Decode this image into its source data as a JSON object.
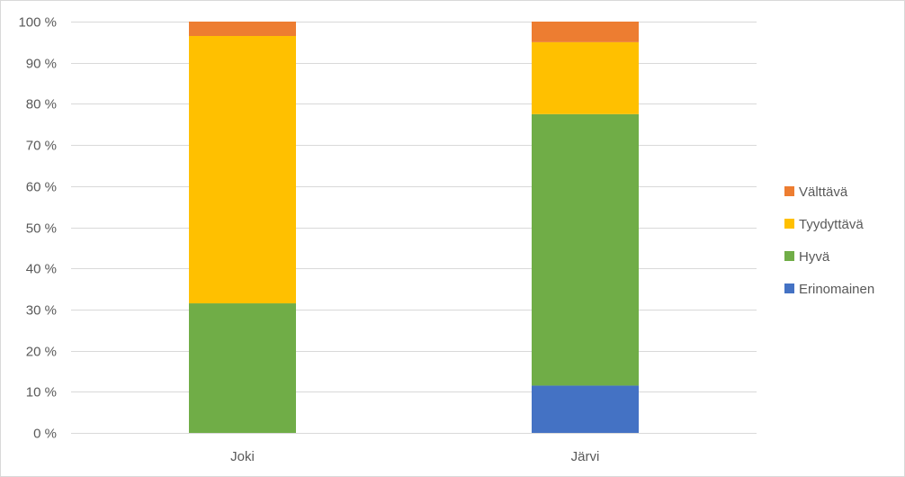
{
  "chart_data": {
    "type": "bar",
    "stacked": true,
    "percent_stacked": true,
    "categories": [
      "Joki",
      "Järvi"
    ],
    "series": [
      {
        "name": "Erinomainen",
        "color": "#4472c4",
        "values": [
          0,
          11.5
        ]
      },
      {
        "name": "Hyvä",
        "color": "#70ad47",
        "values": [
          31.5,
          66
        ]
      },
      {
        "name": "Tyydyttävä",
        "color": "#ffc000",
        "values": [
          65,
          17.5
        ]
      },
      {
        "name": "Välttävä",
        "color": "#ed7d31",
        "values": [
          3.5,
          5
        ]
      }
    ],
    "y_ticks": [
      "0 %",
      "10 %",
      "20 %",
      "30 %",
      "40 %",
      "50 %",
      "60 %",
      "70 %",
      "80 %",
      "90 %",
      "100 %"
    ],
    "ylim": [
      0,
      100
    ],
    "grid": true,
    "legend_position": "right"
  }
}
